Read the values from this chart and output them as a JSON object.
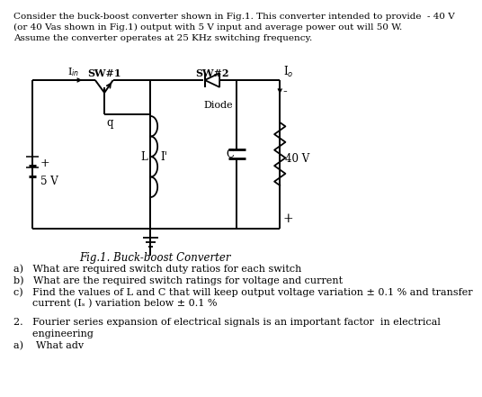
{
  "background_color": "#ffffff",
  "text_intro": "Consider the buck-boost converter shown in Fig.1. This converter intended to provide  - 40 V\n(or 40 Vas shown in Fig.1) output with 5 V input and average power out will 50 W.\nAssume the converter operates at 25 KHz switching frequency.",
  "fig_caption": "Fig.1. Buck-boost Converter",
  "qa": "a)   What are required switch duty ratios for each switch",
  "qb": "b)   What are the required switch ratings for voltage and current",
  "qc1": "c)   Find the values of L and C that will keep output voltage variation ± 0.1 % and transfer",
  "qc2": "      current (Iₛ ) variation below ± 0.1 %",
  "q2": "2.   Fourier series expansion of electrical signals is an important factor  in electrical",
  "q2b": "      engineering",
  "q2a": "a)    What adv"
}
